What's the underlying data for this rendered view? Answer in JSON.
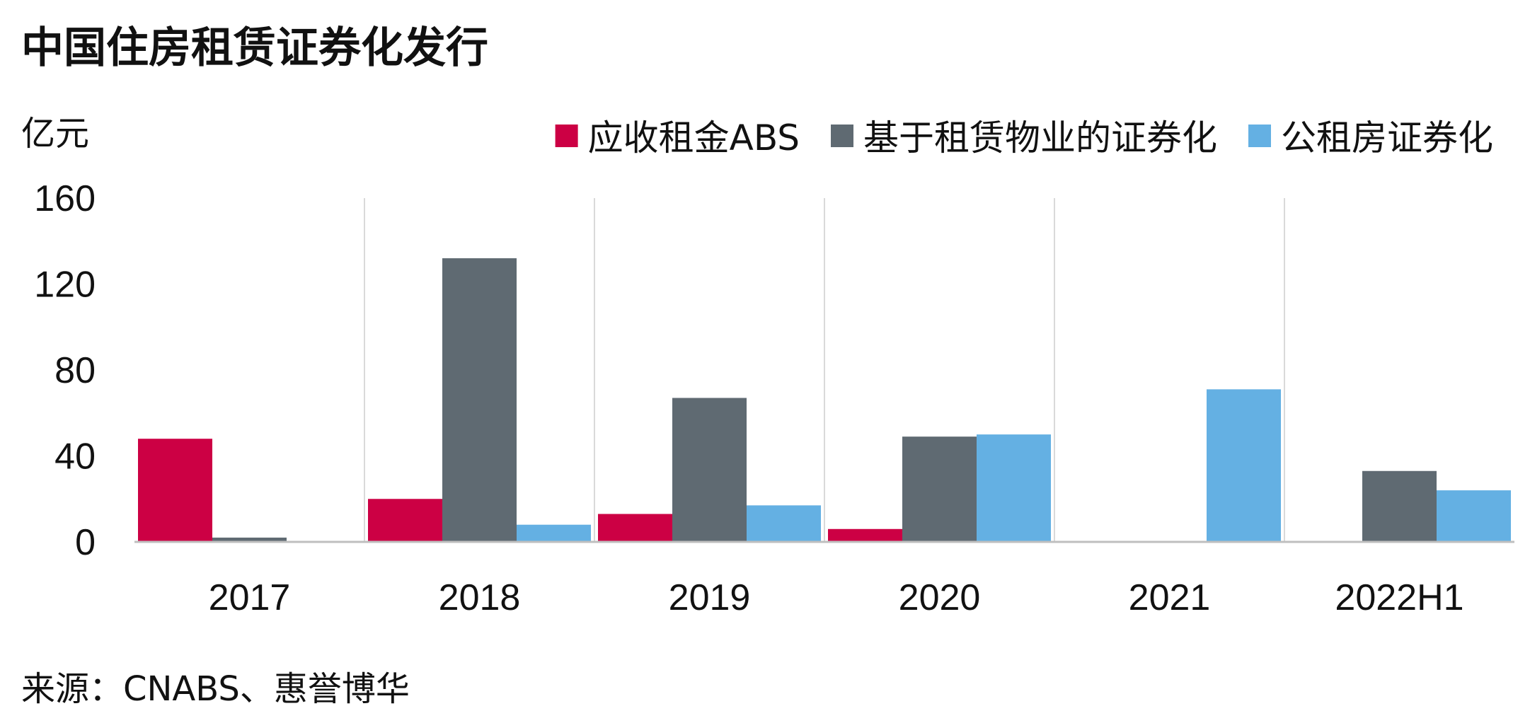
{
  "chart_data": {
    "type": "bar",
    "title": "中国住房租赁证券化发行",
    "unit_label": "亿元",
    "source": "来源：CNABS、惠誉博华",
    "categories": [
      "2017",
      "2018",
      "2019",
      "2020",
      "2021",
      "2022H1"
    ],
    "series": [
      {
        "name": "应收租金ABS",
        "color": "#cc0044",
        "values": [
          48,
          20,
          13,
          6,
          0,
          0
        ]
      },
      {
        "name": "基于租赁物业的证券化",
        "color": "#5f6a72",
        "values": [
          2,
          132,
          67,
          49,
          0,
          33
        ]
      },
      {
        "name": "公租房证券化",
        "color": "#64b0e3",
        "values": [
          0,
          8,
          17,
          50,
          71,
          24
        ]
      }
    ],
    "yticks": [
      0,
      40,
      80,
      120,
      160
    ],
    "ylim": [
      0,
      160
    ],
    "grid": "vertical category separators",
    "legend_position": "top-right"
  }
}
